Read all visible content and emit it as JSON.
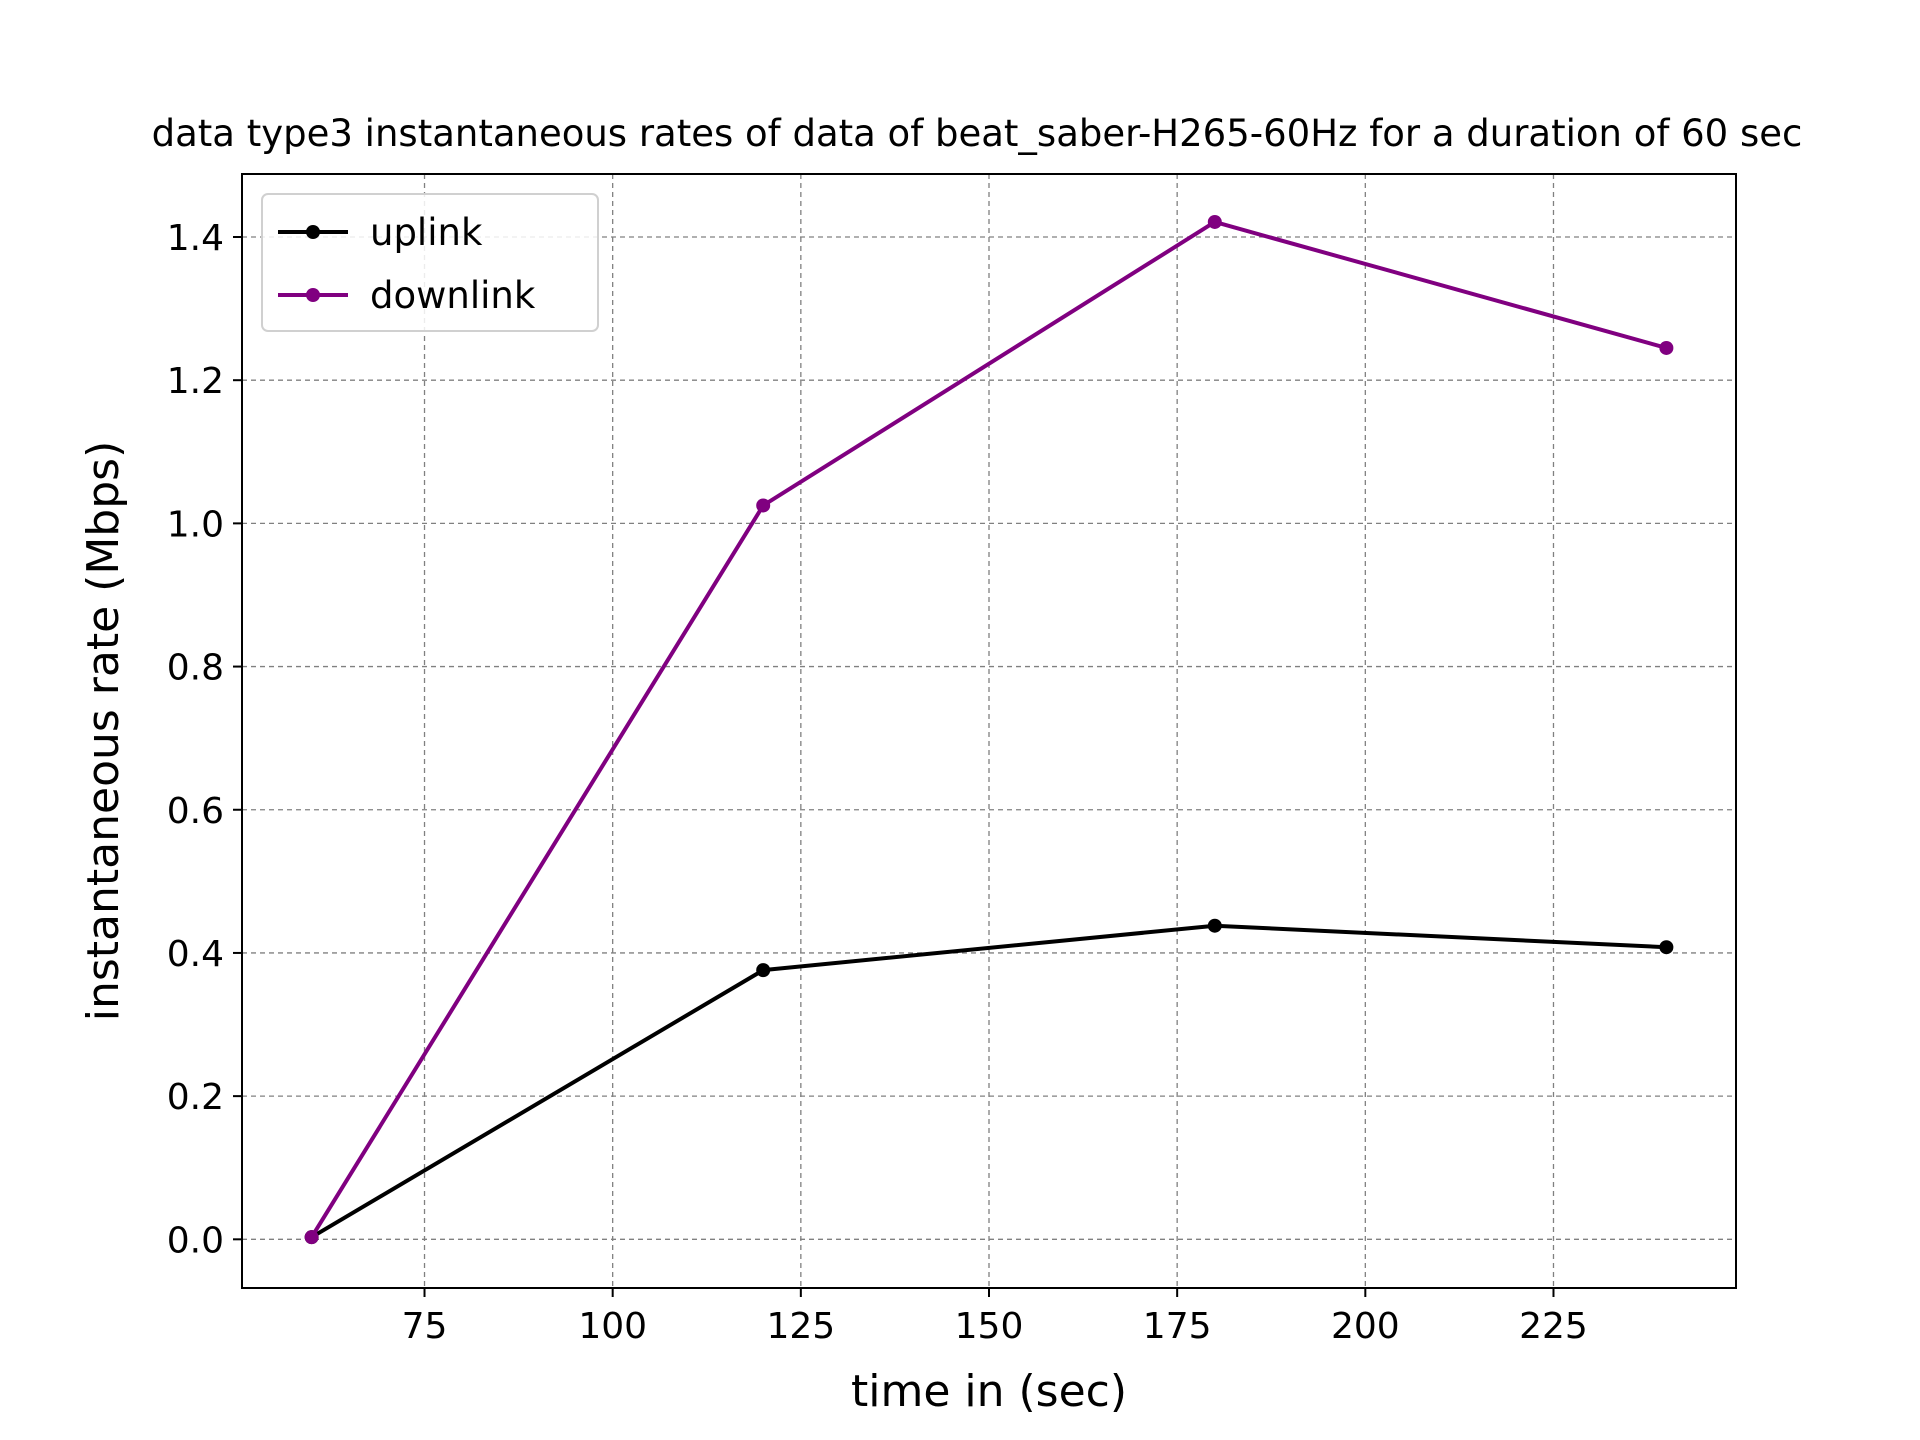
{
  "chart_data": {
    "type": "line",
    "title": "data type3 instantaneous rates of data of beat_saber-H265-60Hz for a duration of 60 sec",
    "xlabel": "time in (sec)",
    "ylabel": "instantaneous rate (Mbps)",
    "xlim": [
      50.75,
      249.25
    ],
    "ylim": [
      -0.068,
      1.488
    ],
    "xticks": [
      75,
      100,
      125,
      150,
      175,
      200,
      225
    ],
    "xtick_labels": [
      "75",
      "100",
      "125",
      "150",
      "175",
      "200",
      "225"
    ],
    "yticks": [
      0.0,
      0.2,
      0.4,
      0.6,
      0.8,
      1.0,
      1.2,
      1.4
    ],
    "ytick_labels": [
      "0.0",
      "0.2",
      "0.4",
      "0.6",
      "0.8",
      "1.0",
      "1.2",
      "1.4"
    ],
    "grid": true,
    "legend_position": "top-left",
    "x": [
      60,
      120,
      180,
      240
    ],
    "series": [
      {
        "name": "uplink",
        "color": "#000000",
        "values": [
          0.003,
          0.376,
          0.438,
          0.408
        ]
      },
      {
        "name": "downlink",
        "color": "#800080",
        "values": [
          0.003,
          1.025,
          1.421,
          1.245
        ]
      }
    ]
  }
}
